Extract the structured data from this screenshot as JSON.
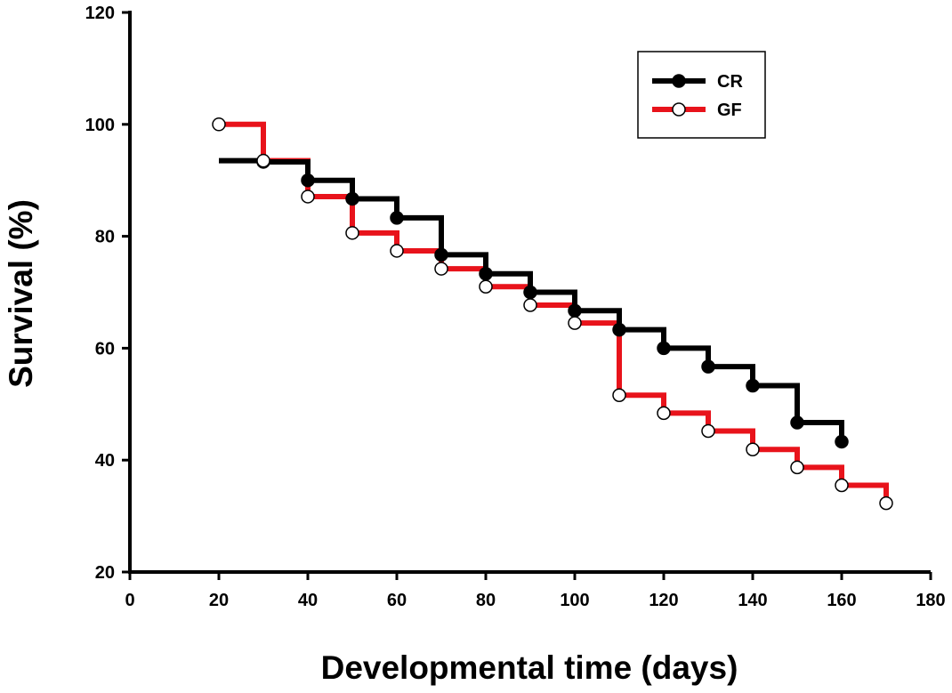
{
  "chart_data": {
    "type": "line",
    "step": true,
    "title": "",
    "xlabel": "Developmental time (days)",
    "ylabel": "Survival (%)",
    "xlim": [
      0,
      180
    ],
    "ylim": [
      20,
      120
    ],
    "xticks": [
      0,
      20,
      40,
      60,
      80,
      100,
      120,
      140,
      160,
      180
    ],
    "yticks": [
      20,
      40,
      60,
      80,
      100,
      120
    ],
    "xtick_labels": [
      "0",
      "20",
      "40",
      "60",
      "80",
      "100",
      "120",
      "140",
      "160",
      "180"
    ],
    "ytick_labels": [
      "20",
      "40",
      "60",
      "80",
      "100",
      "120"
    ],
    "legend_position": "top-right",
    "series": [
      {
        "name": "CR",
        "color": "#000000",
        "marker": "filled-circle",
        "x": [
          30,
          40,
          50,
          60,
          70,
          80,
          90,
          100,
          110,
          120,
          130,
          140,
          150,
          160
        ],
        "y": [
          93.3,
          90.0,
          86.7,
          83.3,
          76.7,
          73.3,
          70.0,
          66.7,
          63.3,
          60.0,
          56.7,
          53.3,
          46.7,
          43.3
        ]
      },
      {
        "name": "GF",
        "color": "#e8131b",
        "marker": "open-circle",
        "x": [
          20,
          30,
          40,
          50,
          60,
          70,
          80,
          90,
          100,
          110,
          120,
          130,
          140,
          150,
          160,
          170
        ],
        "y": [
          100.0,
          93.5,
          87.1,
          80.6,
          77.4,
          74.2,
          71.0,
          67.7,
          64.5,
          51.6,
          48.4,
          45.2,
          41.9,
          38.7,
          35.5,
          32.3
        ]
      }
    ]
  }
}
